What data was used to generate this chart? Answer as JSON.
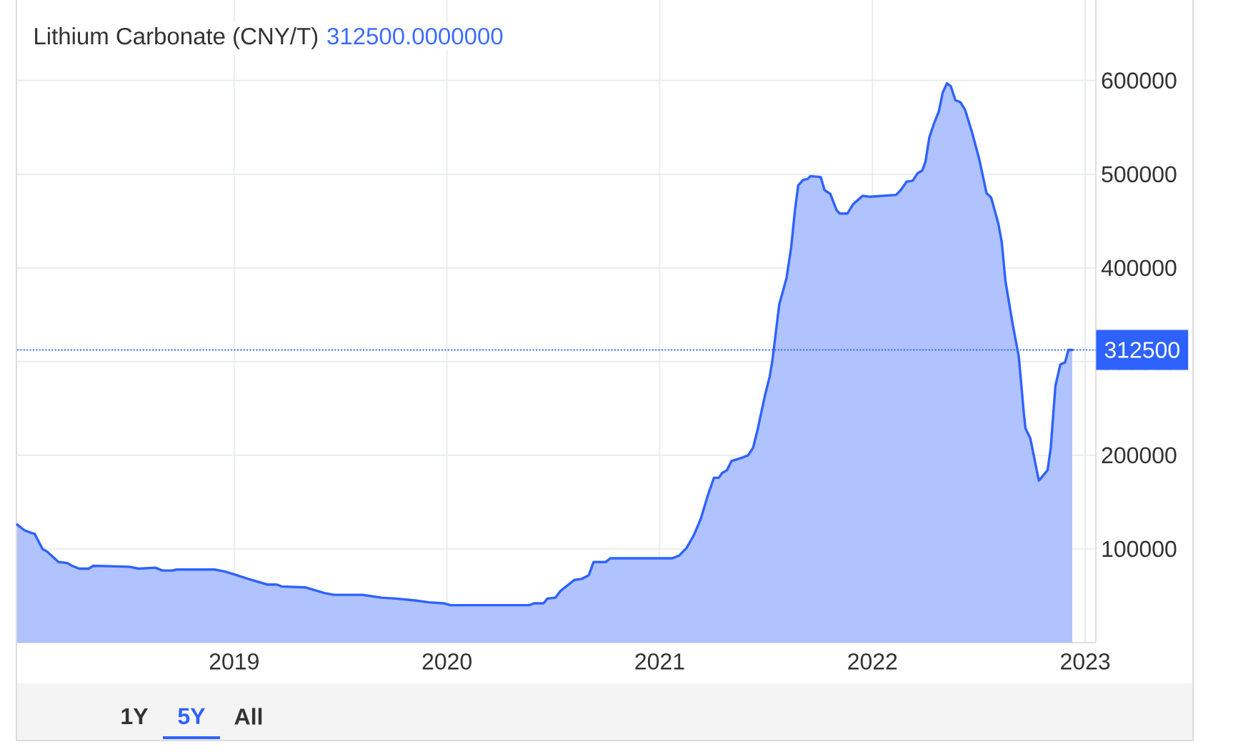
{
  "chart_data": {
    "type": "area",
    "title": "Lithium Carbonate (CNY/T)",
    "subtitle": "312500.0000000",
    "annotations": [
      "1Y",
      "5Y",
      "All"
    ],
    "x": [
      2017.98,
      2018.014,
      2018.048,
      2018.063,
      2018.099,
      2018.122,
      2018.175,
      2018.216,
      2018.238,
      2018.271,
      2018.316,
      2018.338,
      2018.506,
      2018.551,
      2018.629,
      2018.663,
      2018.708,
      2018.73,
      2018.909,
      2018.954,
      2018.999,
      2019.066,
      2019.156,
      2019.2,
      2019.223,
      2019.334,
      2019.424,
      2019.469,
      2019.603,
      2019.693,
      2019.76,
      2019.85,
      2019.917,
      2019.984,
      2020.017,
      2020.387,
      2020.409,
      2020.454,
      2020.472,
      2020.51,
      2020.533,
      2020.566,
      2020.6,
      2020.633,
      2020.667,
      2020.689,
      2020.745,
      2020.768,
      2020.857,
      2021.058,
      2021.092,
      2021.126,
      2021.159,
      2021.193,
      2021.226,
      2021.255,
      2021.278,
      2021.293,
      2021.316,
      2021.338,
      2021.394,
      2021.416,
      2021.439,
      2021.461,
      2021.473,
      2021.495,
      2021.517,
      2021.529,
      2021.562,
      2021.596,
      2021.618,
      2021.636,
      2021.651,
      2021.674,
      2021.696,
      2021.708,
      2021.757,
      2021.775,
      2021.802,
      2021.831,
      2021.846,
      2021.882,
      2021.909,
      2021.954,
      2021.987,
      2022.111,
      2022.133,
      2022.16,
      2022.189,
      2022.212,
      2022.234,
      2022.249,
      2022.267,
      2022.289,
      2022.312,
      2022.33,
      2022.35,
      2022.368,
      2022.39,
      2022.413,
      2022.435,
      2022.469,
      2022.502,
      2022.536,
      2022.558,
      2022.592,
      2022.608,
      2022.625,
      2022.659,
      2022.688,
      2022.711,
      2022.719,
      2022.742,
      2022.782,
      2022.823,
      2022.838,
      2022.85,
      2022.86,
      2022.883,
      2022.905,
      2022.921,
      2022.939
    ],
    "values": [
      126000,
      120000,
      117000,
      116000,
      100000,
      97000,
      86000,
      85000,
      82000,
      79000,
      79000,
      82000,
      81000,
      79000,
      80000,
      77000,
      77000,
      78000,
      78000,
      76000,
      73000,
      68000,
      62000,
      62000,
      60000,
      59000,
      53000,
      51000,
      51000,
      48000,
      47000,
      45000,
      43000,
      42000,
      40000,
      40000,
      42000,
      42000,
      47000,
      48000,
      55000,
      61000,
      67000,
      68000,
      72000,
      86000,
      86000,
      90000,
      90000,
      90000,
      93000,
      101000,
      114000,
      132000,
      157000,
      176000,
      176000,
      181000,
      184000,
      194000,
      198000,
      200000,
      208000,
      228000,
      241000,
      264000,
      284000,
      300000,
      361000,
      389000,
      422000,
      462000,
      488000,
      494000,
      495000,
      498000,
      497000,
      483000,
      479000,
      462000,
      458000,
      458000,
      468000,
      477000,
      476000,
      478000,
      483000,
      492000,
      493000,
      501000,
      504000,
      513000,
      539000,
      554000,
      567000,
      587000,
      597000,
      594000,
      579000,
      577000,
      569000,
      544000,
      516000,
      480000,
      475000,
      447000,
      427000,
      386000,
      340000,
      305000,
      246000,
      229000,
      218000,
      173000,
      184000,
      208000,
      244000,
      274000,
      297000,
      299000,
      312500,
      312500
    ],
    "color": "#2e62ff",
    "xlim": [
      2017.98,
      2023.05
    ],
    "xticks": [
      2019,
      2020,
      2021,
      2022,
      2023
    ],
    "ylim": [
      0,
      686000
    ],
    "yticks": [
      100000,
      200000,
      300000,
      400000,
      500000,
      600000
    ],
    "grid": true,
    "ref_lines": [
      {
        "axis": "y",
        "value": 312500,
        "label": "312500",
        "color": "#2e62ff",
        "line_style": "dotted"
      }
    ]
  }
}
